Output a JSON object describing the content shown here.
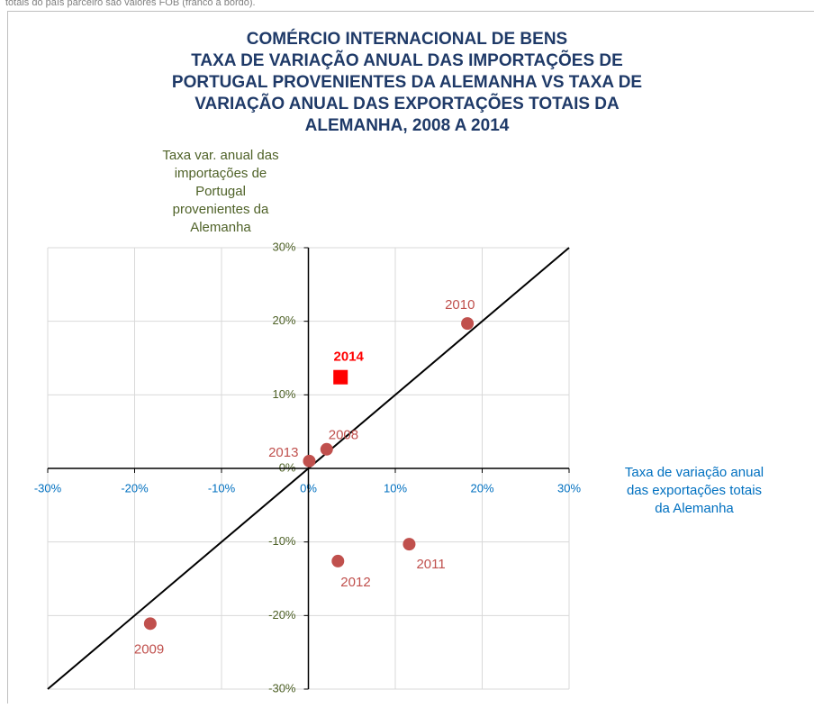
{
  "note": "totais do país parceiro são valores FOB (franco a bordo).",
  "chart_data": {
    "type": "scatter",
    "title": [
      "COMÉRCIO INTERNACIONAL  DE BENS",
      "TAXA DE VARIAÇÃO ANUAL DAS IMPORTAÇÕES DE",
      "PORTUGAL PROVENIENTES  DA ALEMANHA VS TAXA DE",
      "VARIAÇÃO ANUAL DAS EXPORTAÇÕES TOTAIS DA",
      "ALEMANHA, 2008  A 2014"
    ],
    "y_label": [
      "Taxa var. anual das",
      "importações de",
      "Portugal",
      "provenientes da",
      "Alemanha"
    ],
    "x_label": [
      "Taxa de variação anual",
      "das  exportações totais",
      "da Alemanha"
    ],
    "points": [
      {
        "label": "2008",
        "x": 2.1,
        "y": 2.6,
        "color": "#c0504d",
        "marker": "circle"
      },
      {
        "label": "2009",
        "x": -18.2,
        "y": -21.1,
        "color": "#c0504d",
        "marker": "circle"
      },
      {
        "label": "2010",
        "x": 18.3,
        "y": 19.7,
        "color": "#c0504d",
        "marker": "circle"
      },
      {
        "label": "2011",
        "x": 11.6,
        "y": -10.3,
        "color": "#c0504d",
        "marker": "circle"
      },
      {
        "label": "2012",
        "x": 3.4,
        "y": -12.6,
        "color": "#c0504d",
        "marker": "circle"
      },
      {
        "label": "2013",
        "x": 0.1,
        "y": 1.0,
        "color": "#c0504d",
        "marker": "circle"
      },
      {
        "label": "2014",
        "x": 3.7,
        "y": 12.4,
        "color": "#ff0000",
        "marker": "square"
      }
    ],
    "xlim": [
      -30,
      30
    ],
    "ylim": [
      -30,
      30
    ],
    "xticks": [
      {
        "value": -30,
        "label": "-30%"
      },
      {
        "value": -20,
        "label": "-20%"
      },
      {
        "value": -10,
        "label": "-10%"
      },
      {
        "value": 0,
        "label": "0%"
      },
      {
        "value": 10,
        "label": "10%"
      },
      {
        "value": 20,
        "label": "20%"
      },
      {
        "value": 30,
        "label": "30%"
      }
    ],
    "yticks": [
      {
        "value": -30,
        "label": "-30%"
      },
      {
        "value": -20,
        "label": "-20%"
      },
      {
        "value": -10,
        "label": "-10%"
      },
      {
        "value": 0,
        "label": "0%"
      },
      {
        "value": 10,
        "label": "10%"
      },
      {
        "value": 20,
        "label": "20%"
      },
      {
        "value": 30,
        "label": "30%"
      }
    ],
    "grid": true,
    "diagonal": true
  }
}
